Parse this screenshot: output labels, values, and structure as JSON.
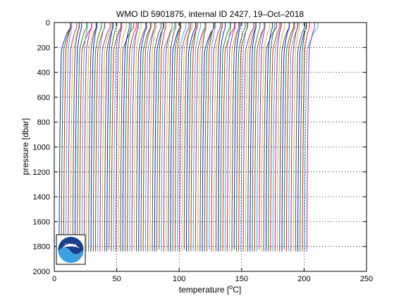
{
  "chart_data": {
    "type": "line",
    "title": "WMO ID 5901875, internal ID 2427, 19–Oct–2018",
    "xlabel_prefix": "temperature [",
    "xlabel_degree": "o",
    "xlabel_suffix": "C]",
    "ylabel": "pressure [dbar]",
    "xlim": [
      0,
      250
    ],
    "ylim": [
      0,
      2000
    ],
    "y_reversed": true,
    "x_ticks": [
      "0",
      "50",
      "100",
      "150",
      "200",
      "250"
    ],
    "y_ticks": [
      "0",
      "200",
      "400",
      "600",
      "800",
      "1000",
      "1200",
      "1400",
      "1600",
      "1800",
      "2000"
    ],
    "grid": true,
    "offset_note": "each successive profile shifted right along the temperature axis",
    "profile_count": 110,
    "profile_offset_start": 2.0,
    "profile_offset_step": 1.82,
    "surface_temperature_base": 8.0,
    "deep_temperature_base": 1.5,
    "max_pressure": 1840,
    "series_colors": [
      "#0000ff",
      "#008000",
      "#ff0000",
      "#00bfbf",
      "#bf00bf",
      "#bfbf00",
      "#404040"
    ],
    "logo": {
      "name": "NOAA",
      "text": "NOAA"
    }
  }
}
